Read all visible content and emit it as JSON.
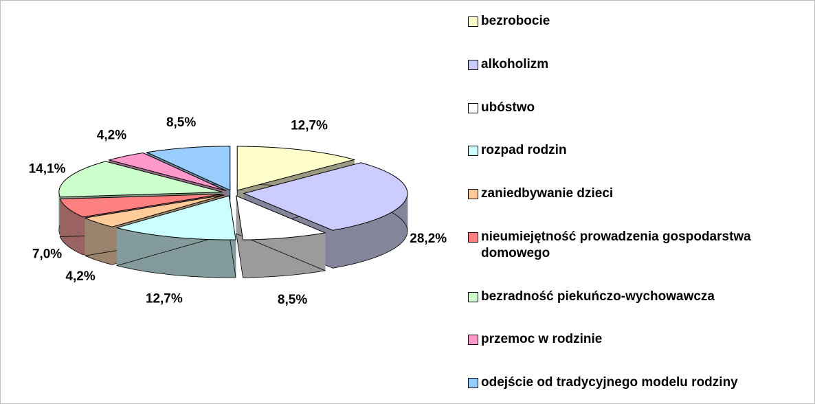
{
  "chart_data": {
    "type": "pie",
    "categories": [
      "bezrobocie",
      "alkoholizm",
      "ubóstwo",
      "rozpad rodzin",
      "zaniedbywanie dzieci",
      "nieumiejętność prowadzenia gospodarstwa domowego",
      "bezradność piekuńczo-wychowawcza",
      "przemoc w rodzinie",
      "odejście od tradycyjnego modelu rodziny"
    ],
    "values": [
      12.7,
      28.2,
      8.5,
      12.7,
      4.2,
      7.0,
      14.1,
      4.2,
      8.5
    ],
    "value_labels": [
      "12,7%",
      "28,2%",
      "8,5%",
      "12,7%",
      "4,2%",
      "7,0%",
      "14,1%",
      "4,2%",
      "8,5%"
    ],
    "colors": [
      "#ffffcc",
      "#ccccff",
      "#ffffff",
      "#ccffff",
      "#ffcc99",
      "#ff8080",
      "#ccffcc",
      "#ff99cc",
      "#99ccff"
    ],
    "legend": "right"
  }
}
